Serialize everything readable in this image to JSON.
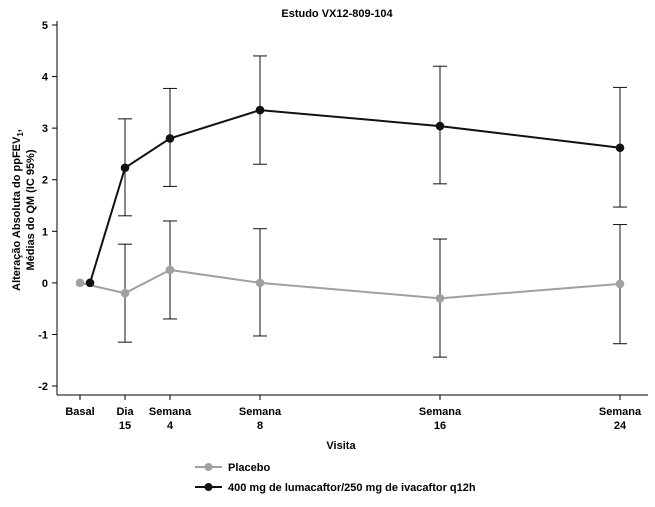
{
  "chart_data": {
    "type": "line",
    "title": "Estudo VX12-809-104",
    "xlabel": "Visita",
    "ylabel_line1": "Alteração Absoluta do ppFEV",
    "ylabel_sub": "1",
    "ylabel_suffix": ",",
    "ylabel_line2": "Médias do QM (IC 95%)",
    "ylim": [
      -2,
      5
    ],
    "yticks": [
      {
        "value": 5,
        "label": "5"
      },
      {
        "value": 4,
        "label": "4"
      },
      {
        "value": 3,
        "label": "3"
      },
      {
        "value": 2,
        "label": "2"
      },
      {
        "value": 1,
        "label": "1"
      },
      {
        "value": 0,
        "label": "0"
      },
      {
        "value": -1,
        "label": "-1"
      },
      {
        "value": -2,
        "label": "-2"
      }
    ],
    "xlim": [
      -0.3,
      24.6
    ],
    "xticks": [
      {
        "value": 0,
        "line1": "Basal",
        "line2": ""
      },
      {
        "value": 2,
        "line1": "Dia",
        "line2": "15"
      },
      {
        "value": 4,
        "line1": "Semana",
        "line2": "4"
      },
      {
        "value": 8,
        "line1": "Semana",
        "line2": "8"
      },
      {
        "value": 16,
        "line1": "Semana",
        "line2": "16"
      },
      {
        "value": 24,
        "line1": "Semana",
        "line2": "24"
      }
    ],
    "grid": false,
    "legend_position": "bottom",
    "series": [
      {
        "name": "Placebo",
        "color": "#a0a0a0",
        "points": [
          {
            "x": 0,
            "y": 0.0,
            "lo": null,
            "hi": null
          },
          {
            "x": 2,
            "y": -0.2,
            "lo": -1.15,
            "hi": 0.75
          },
          {
            "x": 4,
            "y": 0.25,
            "lo": -0.7,
            "hi": 1.2
          },
          {
            "x": 8,
            "y": 0.0,
            "lo": -1.03,
            "hi": 1.05
          },
          {
            "x": 16,
            "y": -0.3,
            "lo": -1.44,
            "hi": 0.85
          },
          {
            "x": 24,
            "y": -0.02,
            "lo": -1.18,
            "hi": 1.13
          }
        ]
      },
      {
        "name": "400 mg de lumacaftor/250 mg de ivacaftor q12h",
        "color": "#111111",
        "points": [
          {
            "x": 0,
            "y": 0.0,
            "lo": null,
            "hi": null
          },
          {
            "x": 2,
            "y": 2.23,
            "lo": 1.3,
            "hi": 3.18
          },
          {
            "x": 4,
            "y": 2.8,
            "lo": 1.87,
            "hi": 3.77
          },
          {
            "x": 8,
            "y": 3.35,
            "lo": 2.3,
            "hi": 4.4
          },
          {
            "x": 16,
            "y": 3.04,
            "lo": 1.92,
            "hi": 4.2
          },
          {
            "x": 24,
            "y": 2.62,
            "lo": 1.47,
            "hi": 3.79
          }
        ]
      }
    ]
  }
}
